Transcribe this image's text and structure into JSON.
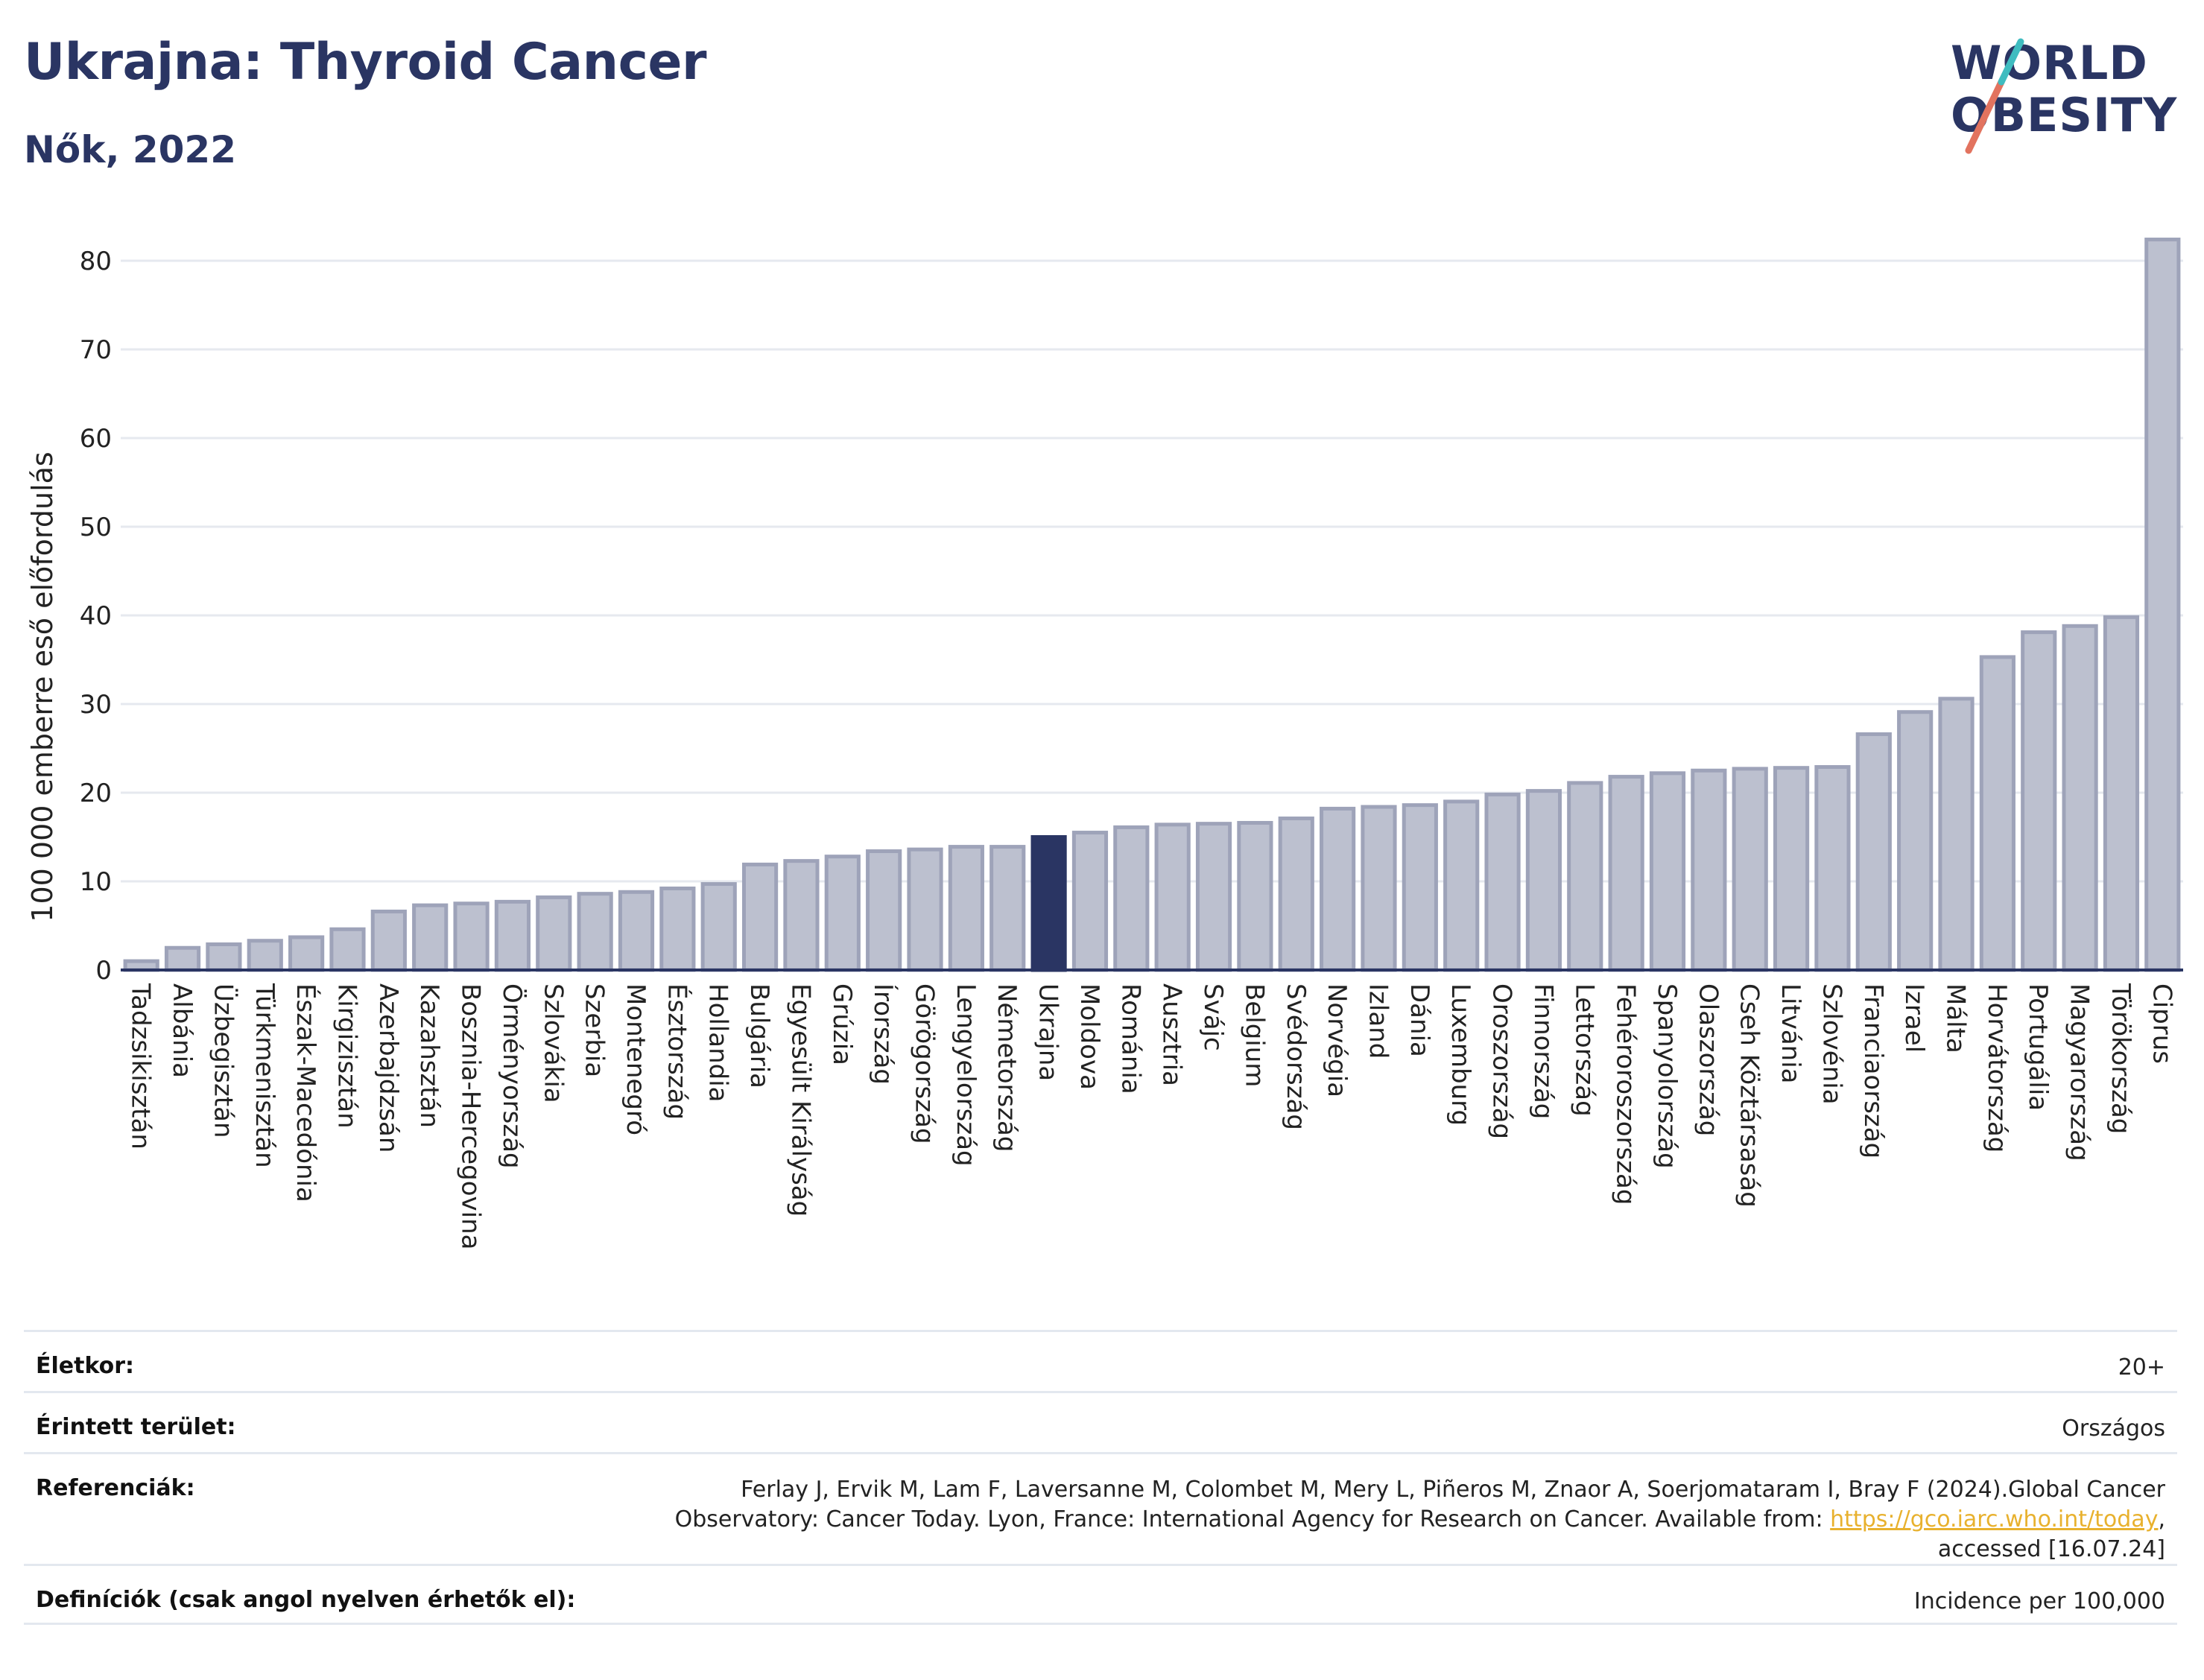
{
  "header": {
    "title": "Ukrajna: Thyroid Cancer",
    "subtitle": "Nők, 2022"
  },
  "logo": {
    "line1": "WORLD",
    "line2": "OBESITY"
  },
  "chart_data": {
    "type": "bar",
    "ylabel": "100 000 emberre eső előfordulás",
    "ylim": [
      0,
      83
    ],
    "yticks": [
      0,
      10,
      20,
      30,
      40,
      50,
      60,
      70,
      80
    ],
    "grid": true,
    "highlight": "Ukrajna",
    "colors": {
      "bar": "#bcc0cf",
      "bar_edge": "#9ea3b9",
      "highlight": "#2a3563",
      "grid": "#e6e9ef",
      "axis": "#2a3563"
    },
    "categories": [
      "Tadzsikisztán",
      "Albánia",
      "Üzbegisztán",
      "Türkmenisztán",
      "Észak-Macedónia",
      "Kirgizisztán",
      "Azerbajdzsán",
      "Kazahsztán",
      "Bosznia-Hercegovina",
      "Örményország",
      "Szlovákia",
      "Szerbia",
      "Montenegró",
      "Észtország",
      "Hollandia",
      "Bulgária",
      "Egyesült Királyság",
      "Grúzia",
      "Írország",
      "Görögország",
      "Lengyelország",
      "Németország",
      "Ukrajna",
      "Moldova",
      "Románia",
      "Ausztria",
      "Svájc",
      "Belgium",
      "Svédország",
      "Norvégia",
      "Izland",
      "Dánia",
      "Luxemburg",
      "Oroszország",
      "Finnország",
      "Lettország",
      "Fehéroroszország",
      "Spanyolország",
      "Olaszország",
      "Cseh Köztársaság",
      "Litvánia",
      "Szlovénia",
      "Franciaország",
      "Izrael",
      "Málta",
      "Horvátország",
      "Portugália",
      "Magyarország",
      "Törökország",
      "Ciprus"
    ],
    "values": [
      1.0,
      2.5,
      2.9,
      3.3,
      3.7,
      4.6,
      6.6,
      7.3,
      7.5,
      7.7,
      8.2,
      8.6,
      8.8,
      9.2,
      9.7,
      11.9,
      12.3,
      12.8,
      13.4,
      13.6,
      13.9,
      13.9,
      15.0,
      15.5,
      16.1,
      16.4,
      16.5,
      16.6,
      17.1,
      18.2,
      18.4,
      18.6,
      19.0,
      19.8,
      20.2,
      21.1,
      21.8,
      22.2,
      22.5,
      22.7,
      22.8,
      22.9,
      26.6,
      29.1,
      30.6,
      35.3,
      38.1,
      38.8,
      39.8,
      82.4
    ]
  },
  "info": {
    "age_label": "Életkor:",
    "age_value": "20+",
    "area_label": "Érintett terület:",
    "area_value": "Országos",
    "ref_label": "Referenciák:",
    "ref_line1": "Ferlay J, Ervik M, Lam F, Laversanne M, Colombet M, Mery L, Piñeros M, Znaor A, Soerjomataram I, Bray F (2024).Global Cancer",
    "ref_line2": "Observatory: Cancer Today. Lyon, France: International Agency for Research on Cancer. Available from: ",
    "ref_link": "https://gco.iarc.who.int/today",
    "ref_line2_end": ",",
    "ref_line3": "accessed [16.07.24]",
    "def_label": "Definíciók (csak angol nyelven érhetők el):",
    "def_value": "Incidence per 100,000"
  }
}
